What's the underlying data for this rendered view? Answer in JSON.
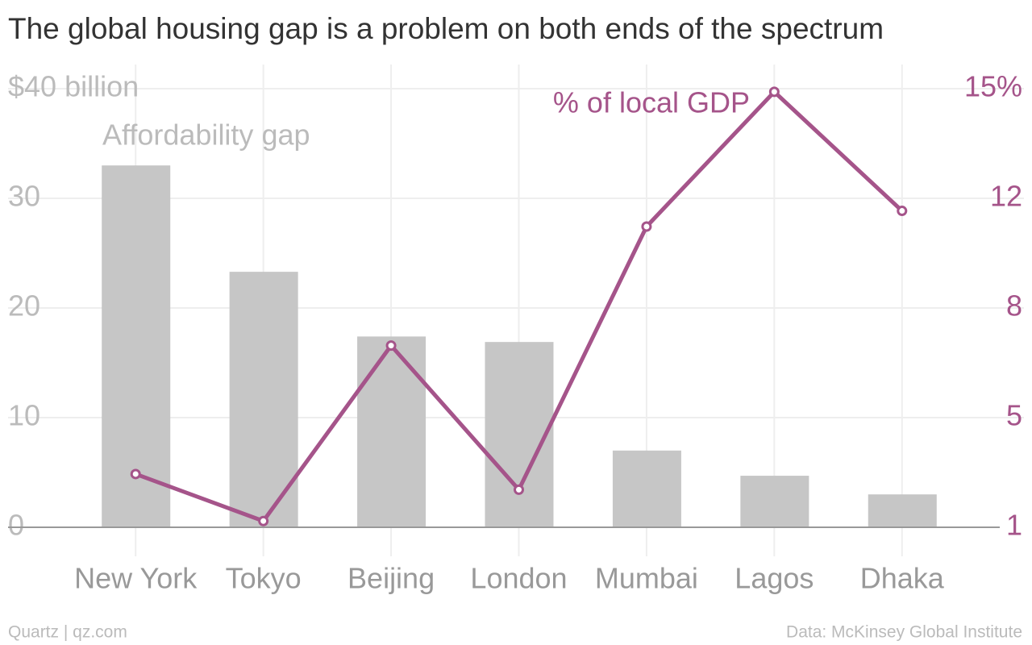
{
  "chart_data": {
    "type": "bar-line",
    "title": "The global housing gap is a problem on both ends of the spectrum",
    "categories": [
      "New York",
      "Tokyo",
      "Beijing",
      "London",
      "Mumbai",
      "Lagos",
      "Dhaka"
    ],
    "series": [
      {
        "name": "Affordability gap",
        "color": "#c6c6c6",
        "type": "bar",
        "values": [
          33,
          23.3,
          17.4,
          16.9,
          7,
          4.7,
          3
        ]
      },
      {
        "name": "% of local GDP",
        "color": "#a5548a",
        "type": "line",
        "axis": "y2",
        "values": [
          2.7,
          1.2,
          6.8,
          2.2,
          10.6,
          14.9,
          11.1
        ]
      }
    ],
    "ylim": [
      0,
      40
    ],
    "yticks": [
      0,
      10,
      20,
      30,
      {
        "value": 40,
        "label": "$40 billion"
      }
    ],
    "y2lim": [
      1,
      15
    ],
    "y2ticks": [
      1,
      {
        "value": 4.5,
        "label": "5"
      },
      8,
      {
        "value": 11.5,
        "label": "12"
      },
      {
        "value": 15,
        "label": "15%"
      }
    ],
    "grid": true,
    "source": "Data: McKinsey Global Institute",
    "credit": "Quartz | qz.com"
  }
}
